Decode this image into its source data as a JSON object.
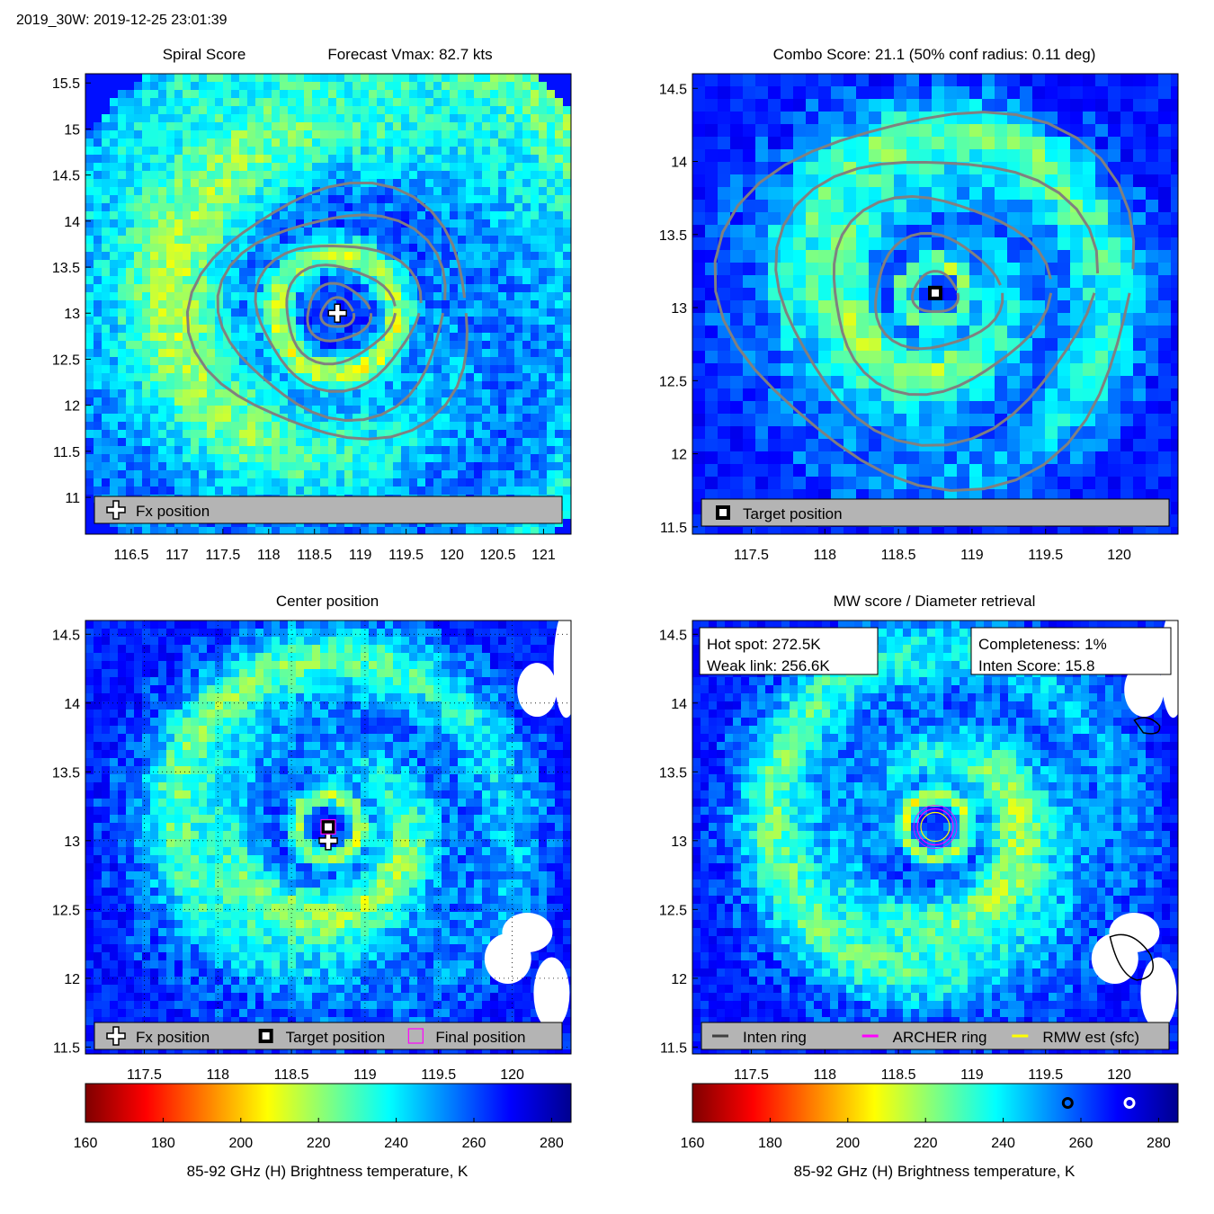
{
  "header": {
    "storm_label": "2019_30W: 2019-12-25 23:01:39"
  },
  "colors": {
    "colormap": [
      "#7f0000",
      "#ff0000",
      "#ff8000",
      "#ffff00",
      "#80ff80",
      "#00ffff",
      "#0080ff",
      "#0000ff",
      "#00008f"
    ],
    "contour": "#808080",
    "legend_bg": "#b4b4b4",
    "land": "#ffffff",
    "archer_ring": "#ff00ff",
    "rmw_ring": "#ffff00",
    "inten_ring": "#404040"
  },
  "icons": {
    "fx_position": "white-cross-icon",
    "target_position": "black-square-marker-icon",
    "final_position": "magenta-square-marker-icon"
  },
  "chart_data": [
    {
      "type": "heatmap",
      "panel": "spiral-score",
      "title_left": "Spiral Score",
      "title_right": "Forecast Vmax: 82.7 kts",
      "xlim": [
        116.0,
        121.3
      ],
      "ylim": [
        10.6,
        15.6
      ],
      "xticks": [
        116.5,
        117,
        117.5,
        118,
        118.5,
        119,
        119.5,
        120,
        120.5,
        121
      ],
      "yticks": [
        11,
        11.5,
        12,
        12.5,
        13,
        13.5,
        14,
        14.5,
        15,
        15.5
      ],
      "center": {
        "lon": 118.75,
        "lat": 13.0
      },
      "markers": [
        {
          "type": "fx",
          "lon": 118.75,
          "lat": 13.0
        }
      ],
      "legend": [
        {
          "icon": "fx",
          "label": "Fx position"
        }
      ]
    },
    {
      "type": "heatmap",
      "panel": "combo-score",
      "title": "Combo Score: 21.1  (50% conf radius: 0.11 deg)",
      "xlim": [
        117.1,
        120.4
      ],
      "ylim": [
        11.45,
        14.6
      ],
      "xticks": [
        117.5,
        118,
        118.5,
        119,
        119.5,
        120
      ],
      "yticks": [
        11.5,
        12,
        12.5,
        13,
        13.5,
        14,
        14.5
      ],
      "center": {
        "lon": 118.75,
        "lat": 13.1
      },
      "markers": [
        {
          "type": "target",
          "lon": 118.75,
          "lat": 13.1
        }
      ],
      "legend": [
        {
          "icon": "target",
          "label": "Target position"
        }
      ]
    },
    {
      "type": "heatmap",
      "panel": "center-position",
      "title": "Center position",
      "xlim": [
        117.1,
        120.4
      ],
      "ylim": [
        11.45,
        14.6
      ],
      "xticks": [
        117.5,
        118,
        118.5,
        119,
        119.5,
        120
      ],
      "yticks": [
        11.5,
        12,
        12.5,
        13,
        13.5,
        14,
        14.5
      ],
      "grid": true,
      "center": {
        "lon": 118.75,
        "lat": 13.1
      },
      "markers": [
        {
          "type": "fx",
          "lon": 118.75,
          "lat": 13.0
        },
        {
          "type": "target",
          "lon": 118.75,
          "lat": 13.1
        },
        {
          "type": "final",
          "lon": 118.75,
          "lat": 13.1
        }
      ],
      "legend": [
        {
          "icon": "fx",
          "label": "Fx position"
        },
        {
          "icon": "target",
          "label": "Target position"
        },
        {
          "icon": "final",
          "label": "Final position"
        }
      ],
      "colorbar": {
        "label": "85-92 GHz (H) Brightness temperature, K",
        "range": [
          160,
          285
        ],
        "ticks": [
          160,
          180,
          200,
          220,
          240,
          260,
          280
        ]
      }
    },
    {
      "type": "heatmap",
      "panel": "mw-score",
      "title": "MW score / Diameter retrieval",
      "xlim": [
        117.1,
        120.4
      ],
      "ylim": [
        11.45,
        14.6
      ],
      "xticks": [
        117.5,
        118,
        118.5,
        119,
        119.5,
        120
      ],
      "yticks": [
        11.5,
        12,
        12.5,
        13,
        13.5,
        14,
        14.5
      ],
      "center": {
        "lon": 118.75,
        "lat": 13.1
      },
      "info_left": [
        "Hot spot: 272.5K",
        "Weak link: 256.6K"
      ],
      "info_right": [
        "Completeness: 1%",
        "Inten Score: 15.8"
      ],
      "legend": [
        {
          "icon": "inten",
          "label": "Inten ring"
        },
        {
          "icon": "archer",
          "label": "ARCHER ring"
        },
        {
          "icon": "rmw",
          "label": "RMW est (sfc)"
        }
      ],
      "colorbar": {
        "label": "85-92 GHz (H) Brightness temperature, K",
        "range": [
          160,
          285
        ],
        "ticks": [
          160,
          180,
          200,
          220,
          240,
          260,
          280
        ],
        "markers": [
          {
            "value": 256.6,
            "style": "black-ring"
          },
          {
            "value": 272.5,
            "style": "white-ring"
          }
        ]
      }
    }
  ]
}
